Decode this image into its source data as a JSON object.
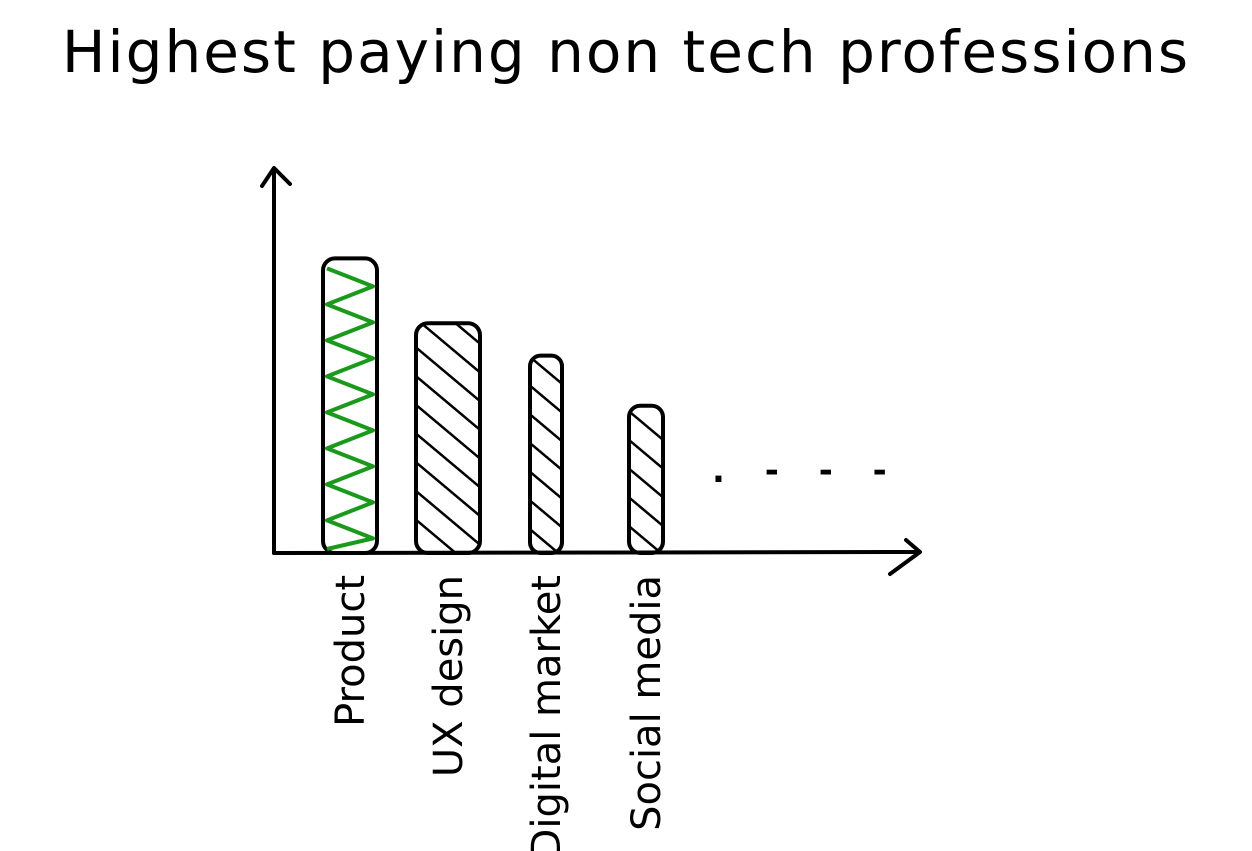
{
  "chart_data": {
    "type": "bar",
    "title": "Highest paying non tech professions",
    "xlabel": "",
    "ylabel": "",
    "categories": [
      "Product",
      "UX design",
      "Digital market",
      "Social media"
    ],
    "values": [
      100,
      78,
      67,
      50
    ],
    "ylim": [
      0,
      130
    ],
    "grid": false,
    "continuation": ". - - -",
    "colors": {
      "highlight": "#1a9a1a",
      "bars": "#000000",
      "axes": "#000000"
    },
    "highlight_index": 0
  }
}
